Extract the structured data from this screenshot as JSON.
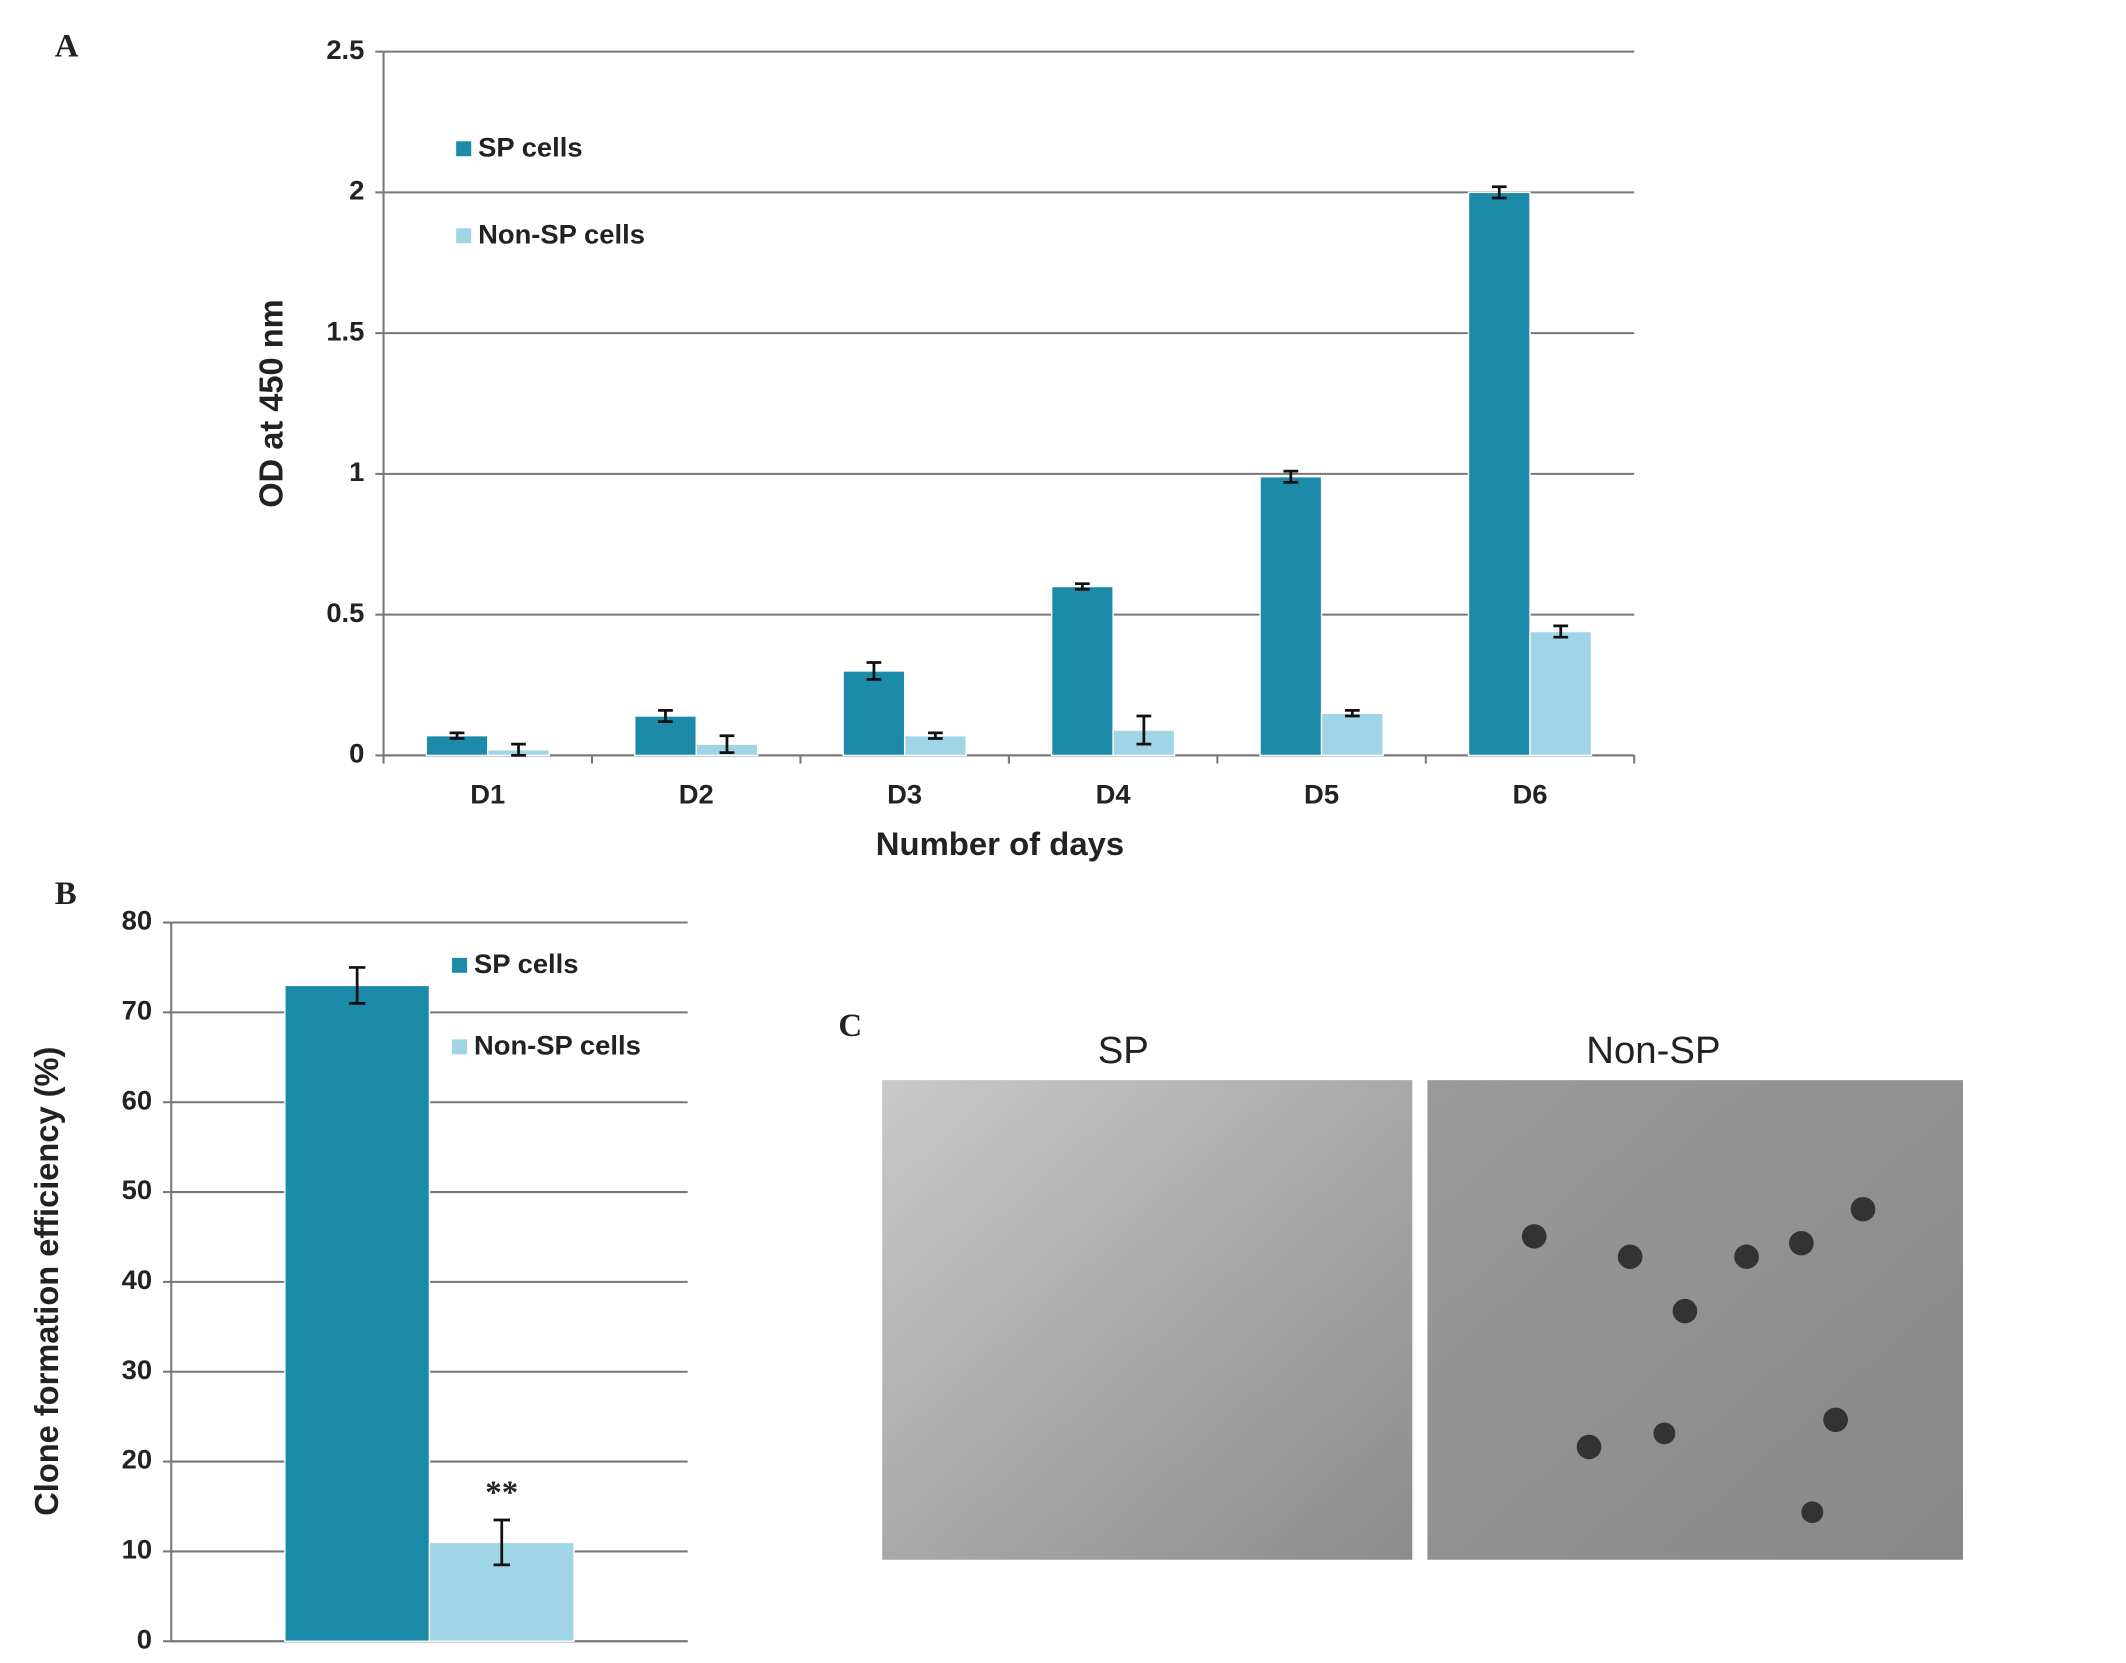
{
  "panel_labels": [
    "A",
    "B",
    "C"
  ],
  "panel_c": {
    "titles": [
      "SP",
      "Non-SP"
    ]
  },
  "chart_data": [
    {
      "type": "bar",
      "ylabel": "OD at 450 nm",
      "xlabel": "Number of days",
      "categories": [
        "D1",
        "D2",
        "D3",
        "D4",
        "D5",
        "D6"
      ],
      "series": [
        {
          "name": "SP cells",
          "color": "#1c8aa9",
          "values": [
            0.07,
            0.14,
            0.3,
            0.6,
            0.99,
            2.0
          ],
          "errors": [
            0.01,
            0.02,
            0.03,
            0.01,
            0.02,
            0.02
          ]
        },
        {
          "name": "Non-SP cells",
          "color": "#9fd5e6",
          "values": [
            0.02,
            0.04,
            0.07,
            0.09,
            0.15,
            0.44
          ],
          "errors": [
            0.02,
            0.03,
            0.01,
            0.05,
            0.01,
            0.02
          ]
        }
      ],
      "ylim": [
        0,
        2.5
      ],
      "yticks": [
        0,
        0.5,
        1,
        1.5,
        2,
        2.5
      ],
      "grid": true
    },
    {
      "type": "bar",
      "ylabel": "Clone formation efficiency (%)",
      "categories": [
        null
      ],
      "series": [
        {
          "name": "SP  cells",
          "color": "#1c8aa9",
          "values": [
            73
          ],
          "errors": [
            2
          ]
        },
        {
          "name": "Non-SP cells",
          "color": "#9fd5e6",
          "values": [
            11
          ],
          "errors": [
            2.5
          ],
          "annotations": [
            "**"
          ]
        }
      ],
      "ylim": [
        0,
        80
      ],
      "yticks": [
        0,
        10,
        20,
        30,
        40,
        50,
        60,
        70,
        80
      ],
      "grid": true
    }
  ]
}
